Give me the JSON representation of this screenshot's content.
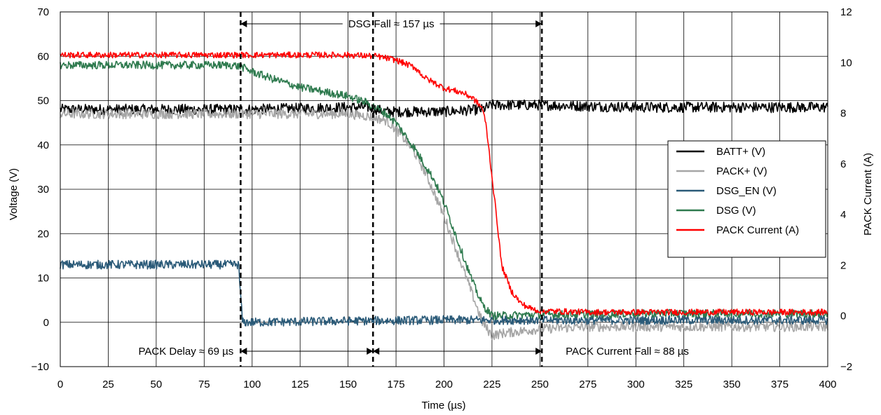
{
  "chart_data": {
    "type": "line",
    "xlabel": "Time (µs)",
    "ylabel": "Voltage (V)",
    "y2label": "PACK Current (A)",
    "xlim": [
      0,
      400
    ],
    "ylim": [
      -10,
      70
    ],
    "y2lim": [
      -2,
      12
    ],
    "xticks": [
      "0",
      "25",
      "50",
      "75",
      "100",
      "125",
      "150",
      "175",
      "200",
      "225",
      "250",
      "275",
      "300",
      "325",
      "350",
      "375",
      "400"
    ],
    "yticks": [
      "−10",
      "0",
      "10",
      "20",
      "30",
      "40",
      "50",
      "60",
      "70"
    ],
    "y2ticks": [
      "−2",
      "0",
      "2",
      "4",
      "6",
      "8",
      "10",
      "12"
    ],
    "grid": true,
    "legend_position": "right",
    "series": [
      {
        "name": "BATT+ (V)",
        "axis": "left",
        "color": "#000000",
        "x": [
          0,
          50,
          100,
          150,
          160,
          170,
          180,
          200,
          220,
          225,
          230,
          250,
          300,
          350,
          400
        ],
        "y": [
          48,
          48,
          48,
          48.5,
          48.5,
          47.5,
          47.5,
          47.5,
          48,
          49,
          49,
          49,
          48.5,
          48.5,
          48.5
        ]
      },
      {
        "name": "PACK+ (V)",
        "axis": "left",
        "color": "#a6a6a6",
        "x": [
          0,
          50,
          94,
          100,
          125,
          150,
          160,
          170,
          175,
          180,
          185,
          190,
          195,
          200,
          205,
          210,
          215,
          220,
          225,
          230,
          240,
          250,
          275,
          300,
          350,
          400
        ],
        "y": [
          47,
          47,
          47,
          47,
          47,
          47,
          46.5,
          45.5,
          43.5,
          41,
          38,
          34,
          29,
          24,
          18,
          12,
          6,
          0,
          -3,
          -2.5,
          -2,
          -1.5,
          -1,
          -1,
          -1,
          -1
        ]
      },
      {
        "name": "DSG_EN (V)",
        "axis": "left",
        "color": "#2a5a78",
        "x": [
          0,
          50,
          93,
          93.5,
          95,
          100,
          150,
          200,
          250,
          300,
          350,
          400
        ],
        "y": [
          13,
          13,
          13,
          9,
          0,
          0,
          0.3,
          0.5,
          0.5,
          0.5,
          0.5,
          0.5
        ]
      },
      {
        "name": "DSG (V)",
        "axis": "left",
        "color": "#2e7a4e",
        "x": [
          0,
          50,
          90,
          95,
          100,
          110,
          125,
          150,
          160,
          170,
          175,
          180,
          185,
          190,
          195,
          200,
          205,
          210,
          215,
          220,
          225,
          230,
          250,
          275,
          300,
          350,
          400
        ],
        "y": [
          58,
          58,
          58,
          57.5,
          56.5,
          55,
          53,
          51,
          49.5,
          47,
          45,
          42,
          39,
          35.5,
          32,
          27,
          21,
          15,
          9,
          4,
          1.5,
          1.5,
          1.8,
          1.8,
          2,
          2,
          2
        ]
      },
      {
        "name": "PACK Current (A)",
        "axis": "right",
        "color": "#ff0000",
        "x": [
          0,
          50,
          100,
          150,
          165,
          175,
          185,
          190,
          200,
          210,
          215,
          220,
          222,
          225,
          228,
          230,
          235,
          240,
          245,
          250,
          275,
          300,
          350,
          400
        ],
        "y": [
          10.3,
          10.3,
          10.3,
          10.3,
          10.25,
          10.1,
          9.8,
          9.4,
          9.0,
          8.8,
          8.6,
          8.2,
          7.5,
          5.5,
          3.5,
          2.0,
          1.0,
          0.5,
          0.3,
          0.2,
          0.15,
          0.15,
          0.15,
          0.15
        ]
      }
    ],
    "annotations": [
      {
        "text": "DSG Fall ≈ 157 µs",
        "x_start": 94,
        "x_end": 251
      },
      {
        "text": "PACK Delay ≈ 69 µs",
        "x_start": 94,
        "x_end": 163
      },
      {
        "text": "PACK Current Fall ≈ 88 µs",
        "x_start": 163,
        "x_end": 251
      }
    ],
    "marker_lines_x": [
      94,
      163,
      251
    ]
  }
}
